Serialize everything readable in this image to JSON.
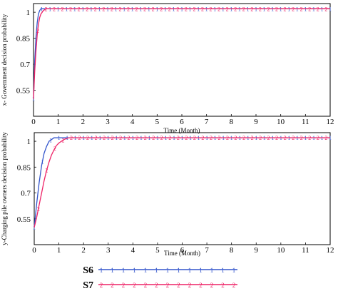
{
  "chart_data": [
    {
      "type": "line",
      "xlabel": "Time (Month)",
      "ylabel": "x-  Government decision probability",
      "xlim": [
        0,
        12
      ],
      "ylim": [
        0.4,
        1.05
      ],
      "xticks": [
        "0",
        "1",
        "2",
        "3",
        "4",
        "5",
        "6",
        "7",
        "8",
        "9",
        "10",
        "11",
        "12"
      ],
      "yticks": [
        "1",
        "0.85",
        "0.7",
        "0.55"
      ],
      "series": [
        {
          "name": "S6",
          "color": "#3355cc",
          "marker": "1",
          "x": [
            0,
            0.05,
            0.1,
            0.15,
            0.2,
            0.25,
            0.3,
            0.4,
            0.5,
            1,
            2,
            3,
            4,
            5,
            6,
            7,
            8,
            9,
            10,
            11,
            12
          ],
          "y": [
            0.5,
            0.72,
            0.86,
            0.94,
            0.99,
            1.01,
            1.02,
            1.02,
            1.02,
            1.02,
            1.02,
            1.02,
            1.02,
            1.02,
            1.02,
            1.02,
            1.02,
            1.02,
            1.02,
            1.02,
            1.02
          ]
        },
        {
          "name": "S7",
          "color": "#ee2266",
          "marker": "2",
          "x": [
            0,
            0.05,
            0.1,
            0.15,
            0.2,
            0.25,
            0.3,
            0.4,
            0.5,
            0.6,
            1,
            2,
            3,
            4,
            5,
            6,
            7,
            8,
            9,
            10,
            11,
            12
          ],
          "y": [
            0.5,
            0.66,
            0.78,
            0.87,
            0.93,
            0.97,
            0.99,
            1.01,
            1.02,
            1.02,
            1.02,
            1.02,
            1.02,
            1.02,
            1.02,
            1.02,
            1.02,
            1.02,
            1.02,
            1.02,
            1.02,
            1.02
          ]
        }
      ]
    },
    {
      "type": "line",
      "xlabel": "Time (Month)",
      "ylabel": "y-Charging pile owners decision probability",
      "xlim": [
        0,
        12
      ],
      "ylim": [
        0.4,
        1.05
      ],
      "xticks": [
        "0",
        "1",
        "2",
        "3",
        "4",
        "5",
        "6",
        "7",
        "8",
        "9",
        "10",
        "11",
        "12"
      ],
      "yticks": [
        "1",
        "0.85",
        "0.7",
        "0.55"
      ],
      "series": [
        {
          "name": "S6",
          "color": "#3355cc",
          "marker": "1",
          "x": [
            0,
            0.1,
            0.2,
            0.3,
            0.4,
            0.5,
            0.6,
            0.7,
            0.8,
            1.0,
            1.2,
            2,
            3,
            4,
            5,
            6,
            7,
            8,
            9,
            10,
            11,
            12
          ],
          "y": [
            0.5,
            0.64,
            0.76,
            0.86,
            0.93,
            0.97,
            1.0,
            1.01,
            1.02,
            1.02,
            1.02,
            1.02,
            1.02,
            1.02,
            1.02,
            1.02,
            1.02,
            1.02,
            1.02,
            1.02,
            1.02,
            1.02
          ]
        },
        {
          "name": "S7",
          "color": "#ee2266",
          "marker": "2",
          "x": [
            0,
            0.1,
            0.2,
            0.3,
            0.4,
            0.5,
            0.6,
            0.7,
            0.8,
            0.9,
            1.0,
            1.2,
            1.4,
            1.6,
            2,
            3,
            4,
            5,
            6,
            7,
            8,
            9,
            10,
            11,
            12
          ],
          "y": [
            0.5,
            0.56,
            0.63,
            0.7,
            0.77,
            0.83,
            0.88,
            0.92,
            0.95,
            0.975,
            0.99,
            1.01,
            1.02,
            1.02,
            1.02,
            1.02,
            1.02,
            1.02,
            1.02,
            1.02,
            1.02,
            1.02,
            1.02,
            1.02,
            1.02
          ]
        }
      ]
    }
  ],
  "legend": {
    "items": [
      {
        "label": "S6",
        "color": "#3355cc",
        "marker": "1"
      },
      {
        "label": "S7",
        "color": "#ee2266",
        "marker": "2"
      }
    ]
  }
}
